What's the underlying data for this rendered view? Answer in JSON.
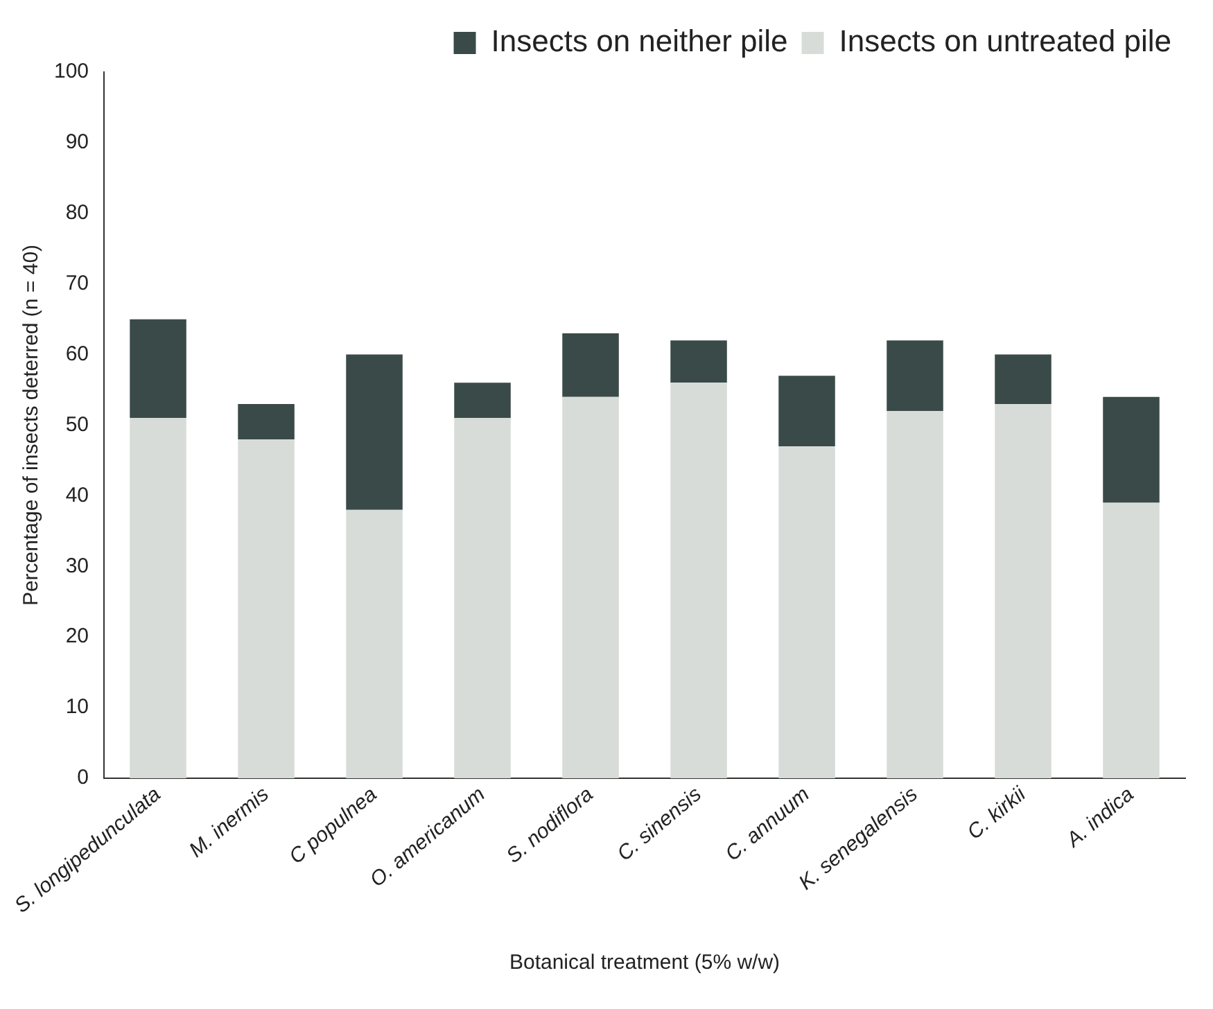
{
  "chart_data": {
    "type": "bar",
    "stacked": true,
    "xlabel": "Botanical treatment (5% w/w)",
    "ylabel": "Percentage of insects deterred (n = 40)",
    "categories": [
      "S. longipedunculata",
      "M. inermis",
      "C populnea",
      "O. americanum",
      "S. nodiflora",
      "C. sinensis",
      "C. annuum",
      "K. senegalensis",
      "C. kirkii",
      "A. indica"
    ],
    "series": [
      {
        "name": "Insects on untreated pile",
        "color": "#d8dcd8",
        "values": [
          51,
          48,
          38,
          51,
          54,
          56,
          47,
          52,
          53,
          39
        ]
      },
      {
        "name": "Insects on neither pile",
        "color": "#3a4a48",
        "values": [
          14,
          5,
          22,
          5,
          9,
          6,
          10,
          10,
          7,
          15
        ]
      }
    ],
    "ylim": [
      0,
      100
    ],
    "yticks": [
      0,
      10,
      20,
      30,
      40,
      50,
      60,
      70,
      80,
      90,
      100
    ],
    "grid": false,
    "legend": "top right"
  }
}
